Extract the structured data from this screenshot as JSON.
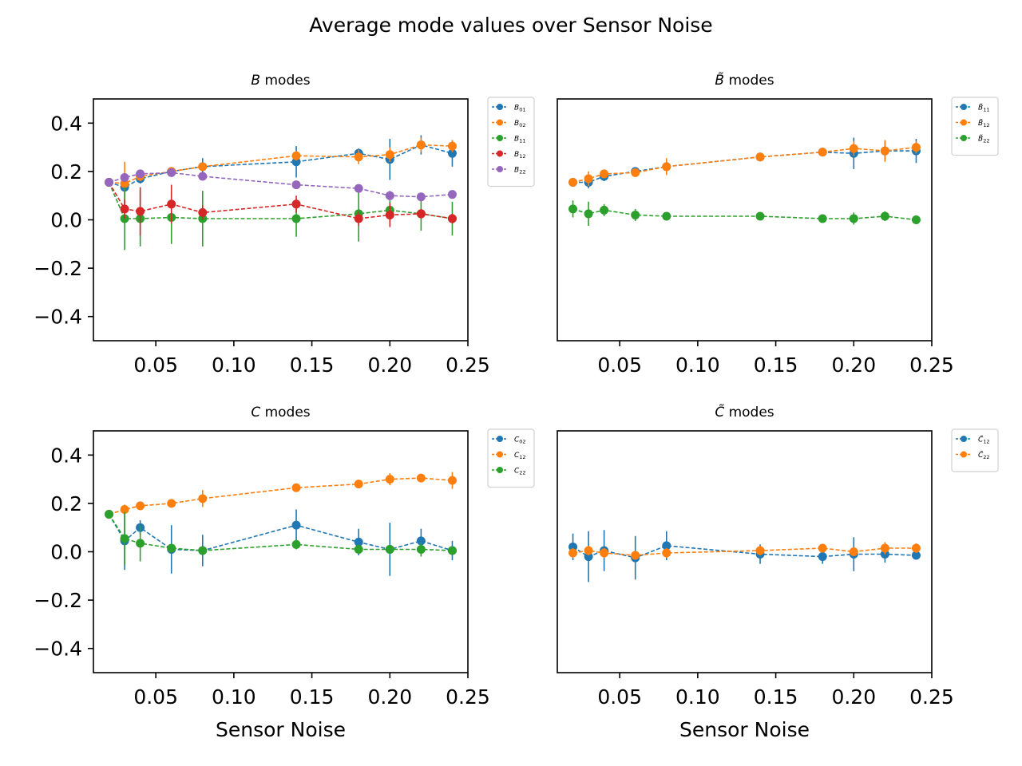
{
  "figure": {
    "title": "Average mode values over Sensor Noise"
  },
  "chart_data": [
    {
      "type": "line",
      "title_italic": "B",
      "title_rest": " modes",
      "xlabel": "",
      "ylabel": "",
      "xlim": [
        0.01,
        0.25
      ],
      "ylim": [
        -0.5,
        0.5
      ],
      "xticks": [
        "0.05",
        "0.10",
        "0.15",
        "0.20",
        "0.25"
      ],
      "yticks": [
        "0.4",
        "0.2",
        "0.0",
        "−0.2",
        "−0.4"
      ],
      "show_yticks": true,
      "x": [
        0.02,
        0.03,
        0.04,
        0.06,
        0.08,
        0.14,
        0.18,
        0.2,
        0.22,
        0.24
      ],
      "series": [
        {
          "name": "B01",
          "base": "B",
          "sub": "01",
          "tilde": false,
          "color": "#1f77b4",
          "values": [
            0.155,
            0.135,
            0.17,
            0.2,
            0.22,
            0.24,
            0.275,
            0.25,
            0.31,
            0.275
          ],
          "errors": [
            0.01,
            0.02,
            0.02,
            0.015,
            0.035,
            0.065,
            0.02,
            0.085,
            0.04,
            0.055
          ]
        },
        {
          "name": "B02",
          "base": "B",
          "sub": "02",
          "tilde": false,
          "color": "#ff7f0e",
          "values": [
            0.155,
            0.15,
            0.18,
            0.2,
            0.22,
            0.265,
            0.26,
            0.27,
            0.31,
            0.305
          ],
          "errors": [
            0.01,
            0.09,
            0.02,
            0.015,
            0.015,
            0.02,
            0.03,
            0.03,
            0.03,
            0.025
          ]
        },
        {
          "name": "B11",
          "base": "B",
          "sub": "11",
          "tilde": false,
          "color": "#2ca02c",
          "values": [
            0.155,
            0.005,
            0.005,
            0.01,
            0.005,
            0.005,
            0.025,
            0.04,
            0.025,
            0.005
          ],
          "errors": [
            0.01,
            0.13,
            0.115,
            0.11,
            0.115,
            0.075,
            0.115,
            0.04,
            0.07,
            0.07
          ]
        },
        {
          "name": "B12",
          "base": "B",
          "sub": "12",
          "tilde": false,
          "color": "#d62728",
          "values": [
            0.155,
            0.045,
            0.035,
            0.065,
            0.03,
            0.065,
            0.005,
            0.02,
            0.025,
            0.005
          ],
          "errors": [
            0.01,
            0.04,
            0.1,
            0.08,
            0.03,
            0.035,
            0.03,
            0.05,
            0.02,
            0.02
          ]
        },
        {
          "name": "B22",
          "base": "B",
          "sub": "22",
          "tilde": false,
          "color": "#9467bd",
          "values": [
            0.155,
            0.175,
            0.19,
            0.195,
            0.18,
            0.145,
            0.13,
            0.1,
            0.095,
            0.105
          ],
          "errors": [
            0.01,
            0.01,
            0.01,
            0.01,
            0.01,
            0.01,
            0.01,
            0.02,
            0.01,
            0.01
          ]
        }
      ]
    },
    {
      "type": "line",
      "title_italic": "B̃",
      "title_rest": " modes",
      "xlabel": "",
      "ylabel": "",
      "xlim": [
        0.01,
        0.25
      ],
      "ylim": [
        -0.5,
        0.5
      ],
      "xticks": [
        "0.05",
        "0.10",
        "0.15",
        "0.20",
        "0.25"
      ],
      "yticks": [],
      "show_yticks": false,
      "x": [
        0.02,
        0.03,
        0.04,
        0.06,
        0.08,
        0.14,
        0.18,
        0.2,
        0.22,
        0.24
      ],
      "series": [
        {
          "name": "B~11",
          "base": "B",
          "sub": "11",
          "tilde": true,
          "color": "#1f77b4",
          "values": [
            0.155,
            0.155,
            0.18,
            0.2,
            0.22,
            0.26,
            0.28,
            0.275,
            0.285,
            0.285
          ],
          "errors": [
            0.01,
            0.025,
            0.02,
            0.015,
            0.02,
            0.015,
            0.015,
            0.065,
            0.04,
            0.05
          ]
        },
        {
          "name": "B~12",
          "base": "B",
          "sub": "12",
          "tilde": true,
          "color": "#ff7f0e",
          "values": [
            0.155,
            0.17,
            0.19,
            0.195,
            0.22,
            0.26,
            0.28,
            0.295,
            0.285,
            0.3
          ],
          "errors": [
            0.01,
            0.03,
            0.015,
            0.015,
            0.035,
            0.015,
            0.01,
            0.03,
            0.045,
            0.025
          ]
        },
        {
          "name": "B~22",
          "base": "B",
          "sub": "22",
          "tilde": true,
          "color": "#2ca02c",
          "values": [
            0.045,
            0.025,
            0.04,
            0.02,
            0.015,
            0.015,
            0.005,
            0.005,
            0.015,
            0.0
          ],
          "errors": [
            0.035,
            0.05,
            0.025,
            0.025,
            0.01,
            0.015,
            0.015,
            0.025,
            0.02,
            0.01
          ]
        }
      ]
    },
    {
      "type": "line",
      "title_italic": "C",
      "title_rest": " modes",
      "xlabel": "Sensor Noise",
      "ylabel": "",
      "xlim": [
        0.01,
        0.25
      ],
      "ylim": [
        -0.5,
        0.5
      ],
      "xticks": [
        "0.05",
        "0.10",
        "0.15",
        "0.20",
        "0.25"
      ],
      "yticks": [
        "0.4",
        "0.2",
        "0.0",
        "−0.2",
        "−0.4"
      ],
      "show_yticks": true,
      "x": [
        0.02,
        0.03,
        0.04,
        0.06,
        0.08,
        0.14,
        0.18,
        0.2,
        0.22,
        0.24
      ],
      "series": [
        {
          "name": "C02",
          "base": "C",
          "sub": "02",
          "tilde": false,
          "color": "#1f77b4",
          "values": [
            0.155,
            0.045,
            0.1,
            0.01,
            0.005,
            0.11,
            0.04,
            0.01,
            0.045,
            0.005
          ],
          "errors": [
            0.01,
            0.12,
            0.03,
            0.1,
            0.065,
            0.065,
            0.055,
            0.11,
            0.05,
            0.04
          ]
        },
        {
          "name": "C12",
          "base": "C",
          "sub": "12",
          "tilde": false,
          "color": "#ff7f0e",
          "values": [
            0.155,
            0.175,
            0.19,
            0.2,
            0.22,
            0.265,
            0.28,
            0.3,
            0.305,
            0.295
          ],
          "errors": [
            0.01,
            0.02,
            0.015,
            0.015,
            0.035,
            0.015,
            0.01,
            0.025,
            0.015,
            0.035
          ]
        },
        {
          "name": "C22",
          "base": "C",
          "sub": "22",
          "tilde": false,
          "color": "#2ca02c",
          "values": [
            0.155,
            0.055,
            0.035,
            0.015,
            0.005,
            0.03,
            0.01,
            0.01,
            0.01,
            0.005
          ],
          "errors": [
            0.01,
            0.11,
            0.075,
            0.01,
            0.01,
            0.02,
            0.015,
            0.015,
            0.03,
            0.01
          ]
        }
      ]
    },
    {
      "type": "line",
      "title_italic": "C̃",
      "title_rest": " modes",
      "xlabel": "Sensor Noise",
      "ylabel": "",
      "xlim": [
        0.01,
        0.25
      ],
      "ylim": [
        -0.5,
        0.5
      ],
      "xticks": [
        "0.05",
        "0.10",
        "0.15",
        "0.20",
        "0.25"
      ],
      "yticks": [],
      "show_yticks": false,
      "x": [
        0.02,
        0.03,
        0.04,
        0.06,
        0.08,
        0.14,
        0.18,
        0.2,
        0.22,
        0.24
      ],
      "series": [
        {
          "name": "C~12",
          "base": "C",
          "sub": "12",
          "tilde": true,
          "color": "#1f77b4",
          "values": [
            0.02,
            -0.02,
            0.005,
            -0.025,
            0.025,
            -0.01,
            -0.02,
            -0.01,
            -0.01,
            -0.015
          ],
          "errors": [
            0.055,
            0.105,
            0.085,
            0.09,
            0.06,
            0.04,
            0.03,
            0.07,
            0.035,
            0.015
          ]
        },
        {
          "name": "C~22",
          "base": "C",
          "sub": "22",
          "tilde": true,
          "color": "#ff7f0e",
          "values": [
            -0.005,
            0.005,
            -0.005,
            -0.015,
            -0.005,
            0.005,
            0.015,
            0.0,
            0.015,
            0.015
          ],
          "errors": [
            0.02,
            0.02,
            0.02,
            0.015,
            0.02,
            0.02,
            0.015,
            0.015,
            0.025,
            0.02
          ]
        }
      ]
    }
  ]
}
